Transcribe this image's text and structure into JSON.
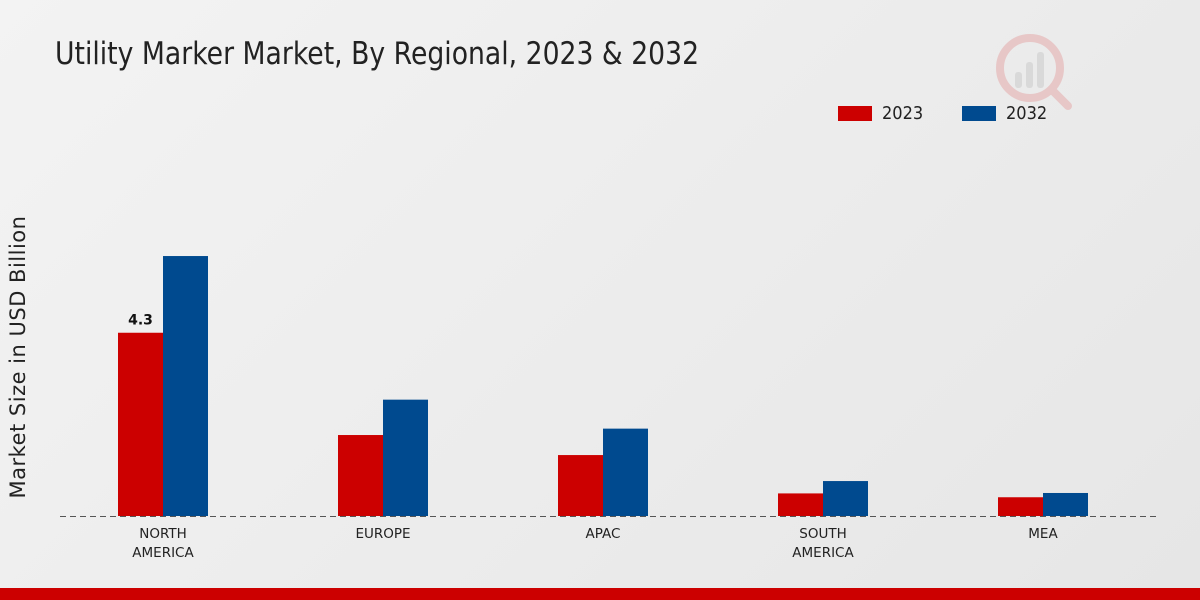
{
  "title": "Utility Marker Market, By Regional, 2023 & 2032",
  "legend": [
    {
      "label": "2023",
      "color": "#cc0000"
    },
    {
      "label": "2032",
      "color": "#004a8f"
    }
  ],
  "ylabel": "Market Size in USD Billion",
  "chart_data": {
    "type": "bar",
    "title": "Utility Marker Market, By Regional, 2023 & 2032",
    "xlabel": "",
    "ylabel": "Market Size in USD Billion",
    "categories": [
      "NORTH\nAMERICA",
      "EUROPE",
      "APAC",
      "SOUTH\nAMERICA",
      "MEA"
    ],
    "series": [
      {
        "name": "2023",
        "color": "#cc0000",
        "values": [
          4.3,
          1.9,
          1.43,
          0.53,
          0.44
        ]
      },
      {
        "name": "2032",
        "color": "#004a8f",
        "values": [
          6.1,
          2.73,
          2.05,
          0.82,
          0.54
        ]
      }
    ],
    "data_labels": [
      {
        "series": 0,
        "index": 0,
        "text": "4.3"
      }
    ],
    "ylim": [
      0,
      10.7
    ],
    "grid": false,
    "legend_position": "top-right"
  }
}
